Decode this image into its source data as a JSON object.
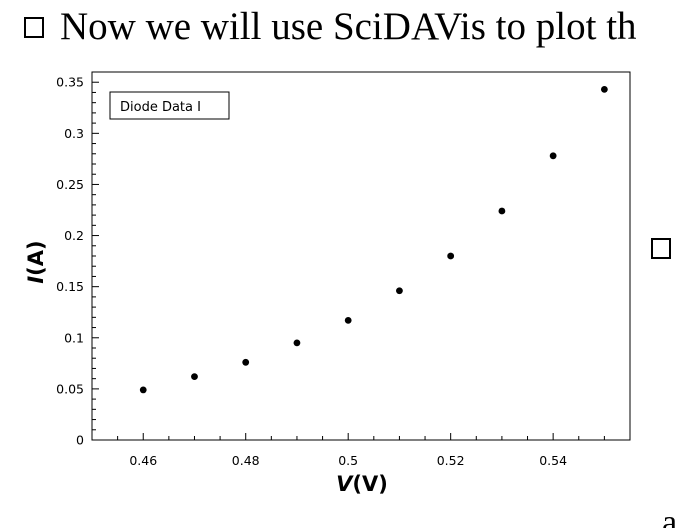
{
  "slide": {
    "heading_text": "Now we will use SciDAVis to plot th",
    "bottom_fragment": "a"
  },
  "chart_data": {
    "type": "scatter",
    "legend": "Diode Data I",
    "legend_position": "top-left",
    "xlabel": "V (V)",
    "xlabel_var": "V",
    "xlabel_unit": "(V)",
    "ylabel": "I (A)",
    "ylabel_var": "I",
    "ylabel_unit": "(A)",
    "xlim": [
      0.45,
      0.555
    ],
    "ylim": [
      0,
      0.36
    ],
    "xticks": [
      0.46,
      0.48,
      0.5,
      0.52,
      0.54
    ],
    "xtick_labels": [
      "0.46",
      "0.48",
      "0.5",
      "0.52",
      "0.54"
    ],
    "yticks": [
      0,
      0.05,
      0.1,
      0.15,
      0.2,
      0.25,
      0.3,
      0.35
    ],
    "ytick_labels": [
      "0",
      "0.05",
      "0.1",
      "0.15",
      "0.2",
      "0.25",
      "0.3",
      "0.35"
    ],
    "grid": false,
    "point_color": "#000000",
    "x": [
      0.46,
      0.47,
      0.48,
      0.49,
      0.5,
      0.51,
      0.52,
      0.53,
      0.54,
      0.55
    ],
    "y": [
      0.049,
      0.062,
      0.076,
      0.095,
      0.117,
      0.146,
      0.18,
      0.224,
      0.278,
      0.343
    ]
  }
}
